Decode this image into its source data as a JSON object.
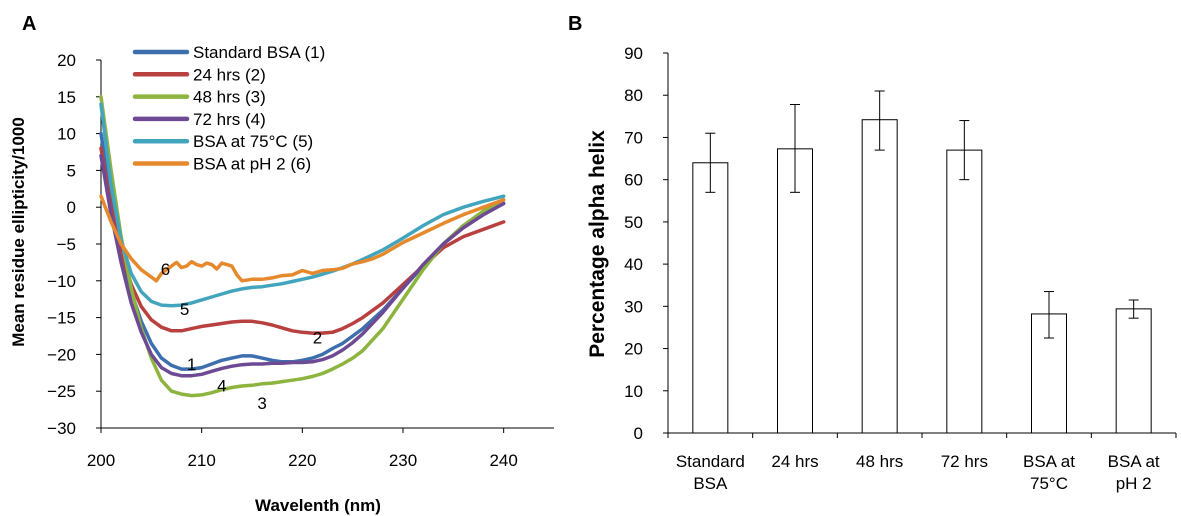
{
  "chart_data": [
    {
      "panel": "A",
      "type": "line",
      "xlabel": "Wavelenth (nm)",
      "ylabel": "Mean residue ellipticity/1000",
      "xlim": [
        200,
        245
      ],
      "ylim": [
        -30,
        20
      ],
      "xticks": [
        200,
        210,
        220,
        230,
        240
      ],
      "yticks": [
        20,
        15,
        10,
        5,
        0,
        -5,
        -10,
        -15,
        -20,
        -25,
        -30
      ],
      "ytick_labels": [
        "20",
        "15",
        "10",
        "5",
        "0",
        "−5",
        "−10",
        "−15",
        "−20",
        "−25",
        "−30"
      ],
      "grid": false,
      "legend_position": "top",
      "series": [
        {
          "name": "Standard BSA (1)",
          "label": "1",
          "color": "#3d6fae",
          "x": [
            200,
            201,
            202,
            203,
            204,
            205,
            206,
            207,
            208,
            209,
            210,
            211,
            212,
            213,
            214,
            215,
            216,
            217,
            218,
            219,
            220,
            221,
            222,
            223,
            224,
            225,
            226,
            228,
            230,
            232,
            234,
            236,
            238,
            240
          ],
          "y": [
            10,
            1,
            -6,
            -11.5,
            -15.5,
            -18.5,
            -20.5,
            -21.5,
            -22,
            -22,
            -21.8,
            -21.3,
            -20.8,
            -20.5,
            -20.2,
            -20.2,
            -20.5,
            -20.8,
            -21,
            -21,
            -20.8,
            -20.5,
            -20,
            -19.2,
            -18.5,
            -17.5,
            -16.5,
            -14,
            -11,
            -8,
            -5,
            -2.5,
            -1,
            0.5
          ]
        },
        {
          "name": "24 hrs (2)",
          "label": "2",
          "color": "#b8403f",
          "x": [
            200,
            201,
            202,
            203,
            204,
            205,
            206,
            207,
            208,
            209,
            210,
            211,
            212,
            213,
            214,
            215,
            216,
            217,
            218,
            219,
            220,
            221,
            222,
            223,
            224,
            225,
            226,
            228,
            230,
            232,
            234,
            236,
            238,
            240
          ],
          "y": [
            8,
            0,
            -6,
            -10.5,
            -13.5,
            -15.3,
            -16.3,
            -16.8,
            -16.8,
            -16.5,
            -16.2,
            -16,
            -15.8,
            -15.6,
            -15.5,
            -15.5,
            -15.7,
            -16,
            -16.4,
            -16.8,
            -17,
            -17.1,
            -17.1,
            -17,
            -16.5,
            -15.8,
            -15,
            -13,
            -10.5,
            -8,
            -5.5,
            -4,
            -3,
            -2
          ]
        },
        {
          "name": "48 hrs (3)",
          "label": "3",
          "color": "#8db43e",
          "x": [
            200,
            201,
            202,
            203,
            204,
            205,
            206,
            207,
            208,
            209,
            210,
            211,
            212,
            213,
            214,
            215,
            216,
            217,
            218,
            219,
            220,
            221,
            222,
            223,
            224,
            225,
            226,
            228,
            230,
            232,
            234,
            236,
            238,
            240
          ],
          "y": [
            15,
            5,
            -4,
            -11,
            -16.5,
            -20.5,
            -23.5,
            -25,
            -25.4,
            -25.6,
            -25.5,
            -25.2,
            -24.8,
            -24.5,
            -24.3,
            -24.2,
            -24,
            -23.9,
            -23.7,
            -23.5,
            -23.3,
            -23,
            -22.6,
            -22,
            -21.3,
            -20.5,
            -19.5,
            -16.5,
            -12.5,
            -8.5,
            -5,
            -2.5,
            -0.5,
            1
          ]
        },
        {
          "name": "72 hrs (4)",
          "label": "4",
          "color": "#6e4a94",
          "x": [
            200,
            201,
            202,
            203,
            204,
            205,
            206,
            207,
            208,
            209,
            210,
            211,
            212,
            213,
            214,
            215,
            216,
            217,
            218,
            219,
            220,
            221,
            222,
            223,
            224,
            225,
            226,
            228,
            230,
            232,
            234,
            236,
            238,
            240
          ],
          "y": [
            7,
            -1,
            -7.5,
            -13,
            -17,
            -20,
            -21.8,
            -22.6,
            -22.9,
            -22.9,
            -22.7,
            -22.3,
            -21.9,
            -21.6,
            -21.4,
            -21.3,
            -21.3,
            -21.2,
            -21.2,
            -21.1,
            -21.1,
            -21,
            -20.7,
            -20.2,
            -19.4,
            -18.4,
            -17.2,
            -14.3,
            -11,
            -7.8,
            -5,
            -2.8,
            -1,
            0.5
          ]
        },
        {
          "name": "BSA at 75°C (5)",
          "label": "5",
          "color": "#43a5bd",
          "x": [
            200,
            201,
            202,
            203,
            204,
            205,
            206,
            207,
            208,
            209,
            210,
            211,
            212,
            213,
            214,
            215,
            216,
            217,
            218,
            219,
            220,
            221,
            222,
            223,
            224,
            225,
            226,
            228,
            230,
            232,
            234,
            236,
            238,
            240
          ],
          "y": [
            14,
            3,
            -4.5,
            -9,
            -11.5,
            -12.8,
            -13.3,
            -13.4,
            -13.3,
            -13,
            -12.6,
            -12.2,
            -11.8,
            -11.4,
            -11.1,
            -10.9,
            -10.8,
            -10.6,
            -10.4,
            -10.1,
            -9.8,
            -9.5,
            -9.1,
            -8.7,
            -8.2,
            -7.7,
            -7.1,
            -5.8,
            -4.2,
            -2.5,
            -1,
            0,
            0.8,
            1.5
          ]
        },
        {
          "name": "BSA at pH 2 (6)",
          "label": "6",
          "color": "#e5892c",
          "x": [
            200,
            201,
            202,
            203,
            204,
            205,
            205.5,
            206,
            206.5,
            207,
            207.5,
            208,
            208.5,
            209,
            209.5,
            210,
            210.5,
            211,
            211.5,
            212,
            212.5,
            213,
            213.5,
            214,
            215,
            216,
            217,
            218,
            219,
            220,
            221,
            222,
            223,
            224,
            225,
            226,
            227,
            228,
            229,
            230,
            232,
            234,
            236,
            238,
            240
          ],
          "y": [
            1.5,
            -2,
            -5,
            -7,
            -8.5,
            -9.5,
            -10,
            -9,
            -8.5,
            -8,
            -7.5,
            -8.2,
            -8,
            -7.4,
            -7.8,
            -8,
            -7.6,
            -7.8,
            -8.4,
            -7.6,
            -7.8,
            -8,
            -9.2,
            -10,
            -9.8,
            -9.8,
            -9.6,
            -9.3,
            -9.2,
            -8.6,
            -9,
            -8.6,
            -8.5,
            -8.3,
            -7.7,
            -7.4,
            -7,
            -6.4,
            -5.6,
            -4.8,
            -3.5,
            -2.2,
            -1,
            0,
            1
          ]
        }
      ]
    },
    {
      "panel": "B",
      "type": "bar",
      "ylabel": "Percentage alpha helix",
      "xlabel": "",
      "ylim": [
        0,
        90
      ],
      "yticks": [
        0,
        10,
        20,
        30,
        40,
        50,
        60,
        70,
        80,
        90
      ],
      "grid": false,
      "categories": [
        [
          "Standard",
          "BSA"
        ],
        [
          "24 hrs"
        ],
        [
          "48 hrs"
        ],
        [
          "72 hrs"
        ],
        [
          "BSA at",
          "75°C"
        ],
        [
          "BSA at",
          "pH 2"
        ]
      ],
      "values": [
        64,
        67.3,
        74.2,
        67,
        28.2,
        29.4
      ],
      "error_low": [
        57,
        57,
        67,
        60,
        22.5,
        27.2
      ],
      "error_high": [
        71,
        77.8,
        81,
        74,
        33.5,
        31.5
      ],
      "bar_fill": "#ffffff",
      "bar_stroke": "#000000"
    }
  ],
  "panel_letters": {
    "a": "A",
    "b": "B"
  }
}
